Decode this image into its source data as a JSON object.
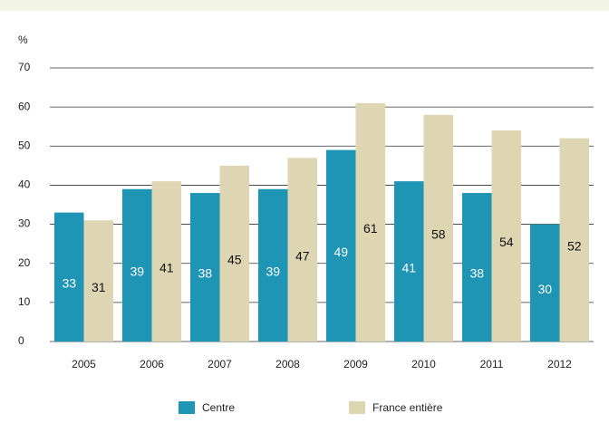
{
  "chart_data": {
    "type": "bar",
    "y_label": "%",
    "categories": [
      "2005",
      "2006",
      "2007",
      "2008",
      "2009",
      "2010",
      "2011",
      "2012"
    ],
    "series": [
      {
        "name": "Centre",
        "color": "#1f95b6",
        "values": [
          33,
          39,
          38,
          39,
          49,
          41,
          38,
          30
        ]
      },
      {
        "name": "France entière",
        "color": "#ded6b2",
        "values": [
          31,
          41,
          45,
          47,
          61,
          58,
          54,
          52
        ]
      }
    ],
    "ylim": [
      0,
      70
    ],
    "yticks": [
      0,
      10,
      20,
      30,
      40,
      50,
      60,
      70
    ],
    "grid": true,
    "legend": "bottom"
  }
}
